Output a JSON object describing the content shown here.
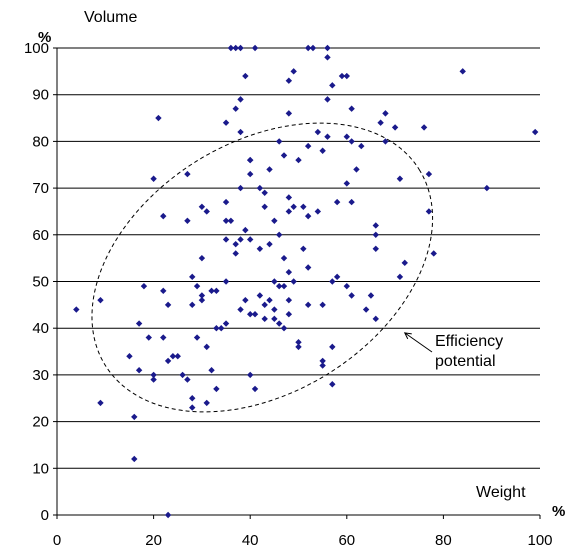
{
  "chart_data": {
    "type": "scatter",
    "title": "",
    "ylabel": "Volume",
    "xlabel": "Weight",
    "y_unit": "%",
    "x_unit": "%",
    "xlim": [
      0,
      100
    ],
    "ylim": [
      0,
      100
    ],
    "xticks": [
      0,
      20,
      40,
      60,
      80,
      100
    ],
    "yticks": [
      0,
      10,
      20,
      30,
      40,
      50,
      60,
      70,
      80,
      90,
      100
    ],
    "grid": "horizontal",
    "marker_color": "#1a1a8c",
    "annotation": {
      "text_line1": "Efficiency",
      "text_line2": "potential",
      "shape": "dashed-ellipse",
      "arrow_to": [
        72,
        39
      ]
    },
    "points": [
      [
        4,
        44
      ],
      [
        9,
        46
      ],
      [
        9,
        24
      ],
      [
        15,
        34
      ],
      [
        16,
        21
      ],
      [
        16,
        12
      ],
      [
        17,
        41
      ],
      [
        17,
        31
      ],
      [
        18,
        49
      ],
      [
        19,
        38
      ],
      [
        20,
        30
      ],
      [
        20,
        29
      ],
      [
        20,
        72
      ],
      [
        21,
        85
      ],
      [
        22,
        64
      ],
      [
        22,
        48
      ],
      [
        22,
        38
      ],
      [
        23,
        45
      ],
      [
        23,
        33
      ],
      [
        23,
        0
      ],
      [
        24,
        34
      ],
      [
        25,
        34
      ],
      [
        26,
        30
      ],
      [
        27,
        73
      ],
      [
        27,
        63
      ],
      [
        27,
        29
      ],
      [
        28,
        51
      ],
      [
        28,
        45
      ],
      [
        28,
        23
      ],
      [
        28,
        25
      ],
      [
        29,
        49
      ],
      [
        29,
        38
      ],
      [
        30,
        66
      ],
      [
        30,
        55
      ],
      [
        30,
        47
      ],
      [
        30,
        46
      ],
      [
        31,
        65
      ],
      [
        31,
        36
      ],
      [
        31,
        24
      ],
      [
        32,
        48
      ],
      [
        32,
        31
      ],
      [
        33,
        48
      ],
      [
        33,
        40
      ],
      [
        33,
        27
      ],
      [
        34,
        40
      ],
      [
        35,
        84
      ],
      [
        35,
        67
      ],
      [
        35,
        63
      ],
      [
        35,
        59
      ],
      [
        35,
        50
      ],
      [
        35,
        41
      ],
      [
        36,
        100
      ],
      [
        36,
        63
      ],
      [
        37,
        100
      ],
      [
        37,
        87
      ],
      [
        37,
        58
      ],
      [
        37,
        56
      ],
      [
        38,
        100
      ],
      [
        38,
        89
      ],
      [
        38,
        82
      ],
      [
        38,
        70
      ],
      [
        38,
        59
      ],
      [
        38,
        44
      ],
      [
        39,
        94
      ],
      [
        39,
        61
      ],
      [
        39,
        46
      ],
      [
        40,
        76
      ],
      [
        40,
        76
      ],
      [
        40,
        73
      ],
      [
        40,
        59
      ],
      [
        40,
        43
      ],
      [
        40,
        30
      ],
      [
        41,
        100
      ],
      [
        41,
        27
      ],
      [
        41,
        43
      ],
      [
        42,
        70
      ],
      [
        42,
        57
      ],
      [
        42,
        47
      ],
      [
        43,
        69
      ],
      [
        43,
        66
      ],
      [
        43,
        45
      ],
      [
        43,
        42
      ],
      [
        44,
        74
      ],
      [
        44,
        58
      ],
      [
        44,
        46
      ],
      [
        45,
        63
      ],
      [
        45,
        50
      ],
      [
        45,
        44
      ],
      [
        45,
        42
      ],
      [
        46,
        80
      ],
      [
        46,
        60
      ],
      [
        46,
        49
      ],
      [
        46,
        41
      ],
      [
        47,
        77
      ],
      [
        47,
        55
      ],
      [
        47,
        49
      ],
      [
        47,
        40
      ],
      [
        48,
        93
      ],
      [
        48,
        86
      ],
      [
        48,
        68
      ],
      [
        48,
        65
      ],
      [
        48,
        52
      ],
      [
        48,
        46
      ],
      [
        48,
        43
      ],
      [
        49,
        95
      ],
      [
        49,
        66
      ],
      [
        49,
        50
      ],
      [
        50,
        76
      ],
      [
        50,
        37
      ],
      [
        50,
        36
      ],
      [
        51,
        66
      ],
      [
        51,
        57
      ],
      [
        52,
        100
      ],
      [
        52,
        79
      ],
      [
        52,
        64
      ],
      [
        52,
        53
      ],
      [
        52,
        45
      ],
      [
        53,
        100
      ],
      [
        54,
        82
      ],
      [
        54,
        65
      ],
      [
        55,
        78
      ],
      [
        55,
        45
      ],
      [
        55,
        33
      ],
      [
        55,
        32
      ],
      [
        56,
        100
      ],
      [
        56,
        98
      ],
      [
        56,
        89
      ],
      [
        56,
        81
      ],
      [
        57,
        92
      ],
      [
        57,
        50
      ],
      [
        57,
        36
      ],
      [
        57,
        28
      ],
      [
        58,
        67
      ],
      [
        58,
        51
      ],
      [
        59,
        94
      ],
      [
        60,
        94
      ],
      [
        60,
        81
      ],
      [
        60,
        71
      ],
      [
        60,
        49
      ],
      [
        61,
        87
      ],
      [
        61,
        80
      ],
      [
        61,
        67
      ],
      [
        61,
        47
      ],
      [
        62,
        74
      ],
      [
        63,
        79
      ],
      [
        64,
        44
      ],
      [
        65,
        47
      ],
      [
        66,
        62
      ],
      [
        66,
        60
      ],
      [
        66,
        57
      ],
      [
        66,
        42
      ],
      [
        67,
        84
      ],
      [
        68,
        86
      ],
      [
        68,
        80
      ],
      [
        70,
        83
      ],
      [
        71,
        72
      ],
      [
        71,
        51
      ],
      [
        72,
        54
      ],
      [
        76,
        83
      ],
      [
        77,
        65
      ],
      [
        77,
        73
      ],
      [
        78,
        56
      ],
      [
        84,
        95
      ],
      [
        89,
        70
      ],
      [
        99,
        82
      ]
    ]
  }
}
